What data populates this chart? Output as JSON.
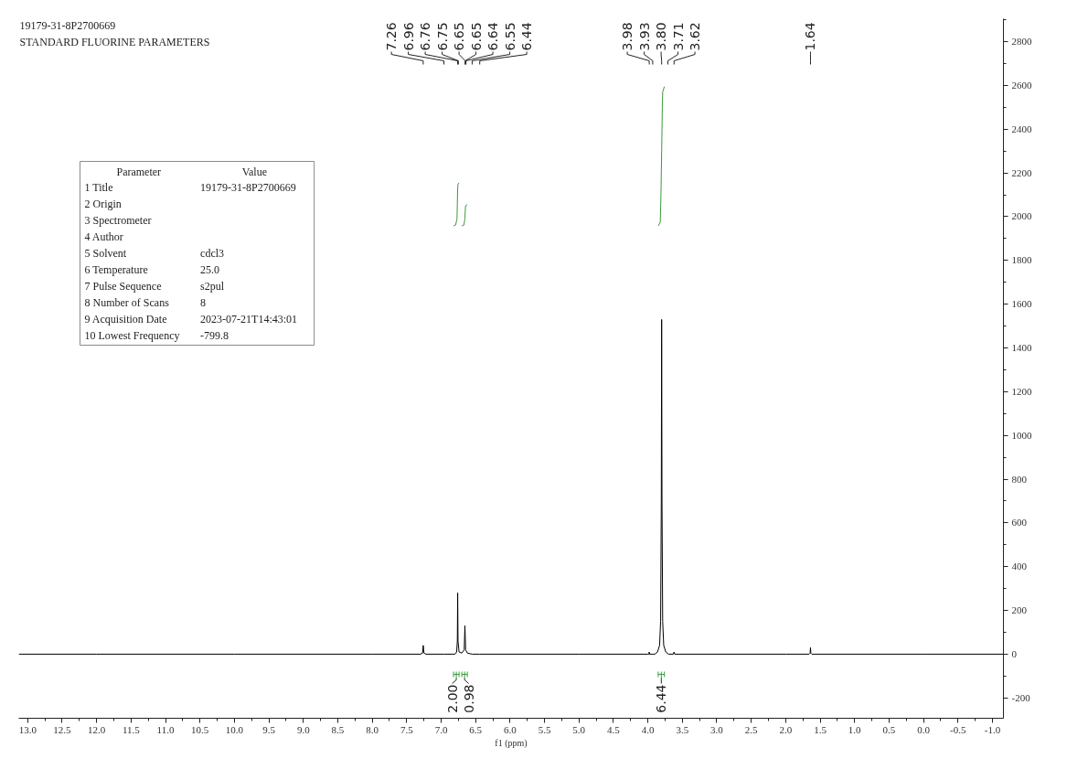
{
  "chart_data": {
    "type": "line",
    "title": "19179-31-8P2700669",
    "subtitle": "STANDARD FLUORINE PARAMETERS",
    "xlabel": "f1 (ppm)",
    "xlim": [
      13.13,
      -1.16
    ],
    "ylim": [
      -293,
      2905
    ],
    "xticks": [
      {
        "value": 13,
        "label": "13.0"
      },
      12.5,
      {
        "value": 12,
        "label": "12.0"
      },
      11.5,
      {
        "value": 11,
        "label": "11.0"
      },
      10.5,
      {
        "value": 10,
        "label": "10.0"
      },
      9.5,
      {
        "value": 9,
        "label": "9.0"
      },
      8.5,
      {
        "value": 8,
        "label": "8.0"
      },
      7.5,
      {
        "value": 7,
        "label": "7.0"
      },
      6.5,
      {
        "value": 6,
        "label": "6.0"
      },
      5.5,
      {
        "value": 5,
        "label": "5.0"
      },
      4.5,
      {
        "value": 4,
        "label": "4.0"
      },
      3.5,
      {
        "value": 3,
        "label": "3.0"
      },
      2.5,
      {
        "value": 2,
        "label": "2.0"
      },
      1.5,
      {
        "value": 1,
        "label": "1.0"
      },
      0.5,
      {
        "value": 0,
        "label": "0.0"
      },
      -0.5,
      {
        "value": -1,
        "label": "-1.0"
      }
    ],
    "yticks": [
      -200,
      0,
      200,
      400,
      600,
      800,
      1000,
      1200,
      1400,
      1600,
      1800,
      2000,
      2200,
      2400,
      2600,
      2800
    ],
    "grid": false,
    "series": [
      {
        "color": "#000000",
        "x": [
          13.13,
          12.0,
          10.0,
          8.0,
          7.3,
          7.27,
          7.26,
          7.25,
          7.22,
          6.96,
          6.8,
          6.775,
          6.765,
          6.76,
          6.755,
          6.74,
          6.7,
          6.665,
          6.655,
          6.645,
          6.62,
          6.55,
          6.44,
          5.0,
          4.0,
          3.985,
          3.98,
          3.975,
          3.93,
          3.9,
          3.86,
          3.83,
          3.815,
          3.805,
          3.8,
          3.795,
          3.785,
          3.77,
          3.74,
          3.7,
          3.63,
          3.62,
          3.61,
          2.0,
          1.66,
          1.645,
          1.64,
          1.635,
          1.62,
          0.0,
          -1.16
        ],
        "values": [
          0,
          0,
          0,
          0,
          0,
          5,
          40,
          5,
          0,
          0,
          0,
          10,
          60,
          280,
          60,
          10,
          5,
          20,
          130,
          20,
          5,
          0,
          0,
          0,
          0,
          0,
          10,
          0,
          0,
          0,
          10,
          40,
          150,
          700,
          1530,
          700,
          150,
          40,
          10,
          0,
          0,
          10,
          0,
          0,
          0,
          5,
          30,
          5,
          0,
          0,
          0
        ]
      },
      {
        "color": "#3a9a3a",
        "x": [
          6.82,
          6.79,
          6.77,
          6.765,
          6.76,
          6.755,
          6.74
        ],
        "values": [
          1958,
          1962,
          1990,
          2060,
          2130,
          2148,
          2155
        ]
      },
      {
        "color": "#3a9a3a",
        "x": [
          6.7,
          6.67,
          6.655,
          6.65,
          6.645,
          6.62
        ],
        "values": [
          1958,
          1962,
          1990,
          2030,
          2050,
          2055
        ]
      },
      {
        "color": "#3a9a3a",
        "x": [
          3.85,
          3.82,
          3.81,
          3.8,
          3.79,
          3.785,
          3.76
        ],
        "values": [
          1958,
          1975,
          2100,
          2300,
          2500,
          2570,
          2595
        ]
      }
    ],
    "annotations": [
      "Parameter\tValue",
      "1 Title\t19179-31-8P2700669",
      "2 Origin\t",
      "3 Spectrometer\t",
      "4 Author\t",
      "5 Solvent\tcdcl3",
      "6 Temperature\t25.0",
      "7 Pulse Sequence\ts2pul",
      "8 Number of Scans\t8",
      "9 Acquisition Date\t2023-07-21T14:43:01",
      "10 Lowest Frequency\t-799.8",
      {
        "text": "7.26",
        "x": 7.26
      },
      {
        "text": "6.96",
        "x": 6.96
      },
      {
        "text": "6.76",
        "x": 6.76
      },
      {
        "text": "6.75",
        "x": 6.75
      },
      {
        "text": "6.65",
        "x": 6.65
      },
      {
        "text": "6.65",
        "x": 6.65
      },
      {
        "text": "6.64",
        "x": 6.64
      },
      {
        "text": "6.55",
        "x": 6.55
      },
      {
        "text": "6.44",
        "x": 6.44
      },
      {
        "text": "3.98",
        "x": 3.98
      },
      {
        "text": "3.93",
        "x": 3.93
      },
      {
        "text": "3.80",
        "x": 3.8
      },
      {
        "text": "3.71",
        "x": 3.71
      },
      {
        "text": "3.62",
        "x": 3.62
      },
      {
        "text": "1.64",
        "x": 1.64
      },
      "2.00",
      "0.98",
      "6.44"
    ]
  }
}
